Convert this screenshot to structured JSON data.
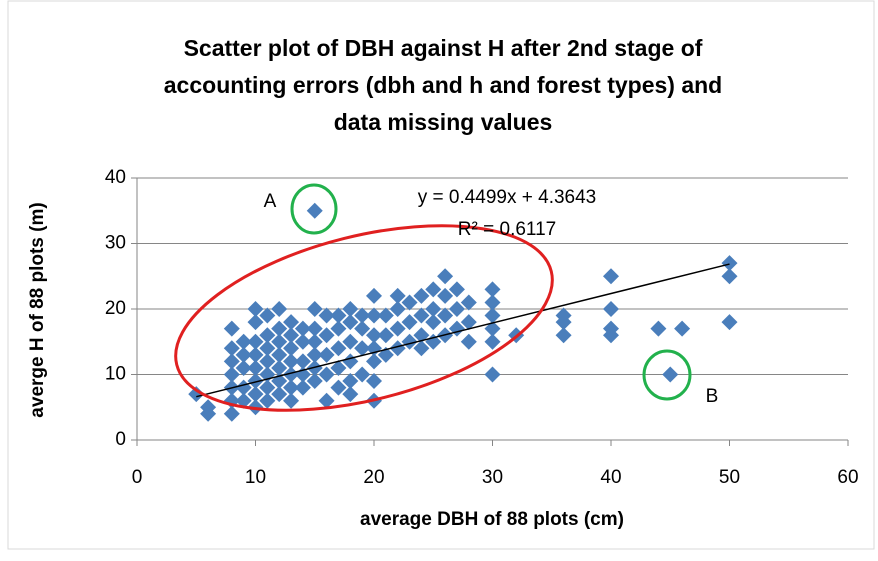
{
  "chart_data": {
    "type": "scatter",
    "title": [
      "Scatter plot of DBH against H after 2nd stage of",
      "accounting errors (dbh and h and forest types) and",
      "data missing values"
    ],
    "x_label": "average DBH of 88 plots (cm)",
    "y_label": "averge H of 88 plots (m)",
    "color": "#4a7ebb",
    "x": [
      5,
      6,
      6,
      8,
      8,
      8,
      8,
      8,
      8,
      8,
      9,
      9,
      9,
      9,
      9,
      10,
      10,
      10,
      10,
      10,
      10,
      10,
      10,
      11,
      11,
      11,
      11,
      11,
      11,
      11,
      12,
      12,
      12,
      12,
      12,
      12,
      12,
      13,
      13,
      13,
      13,
      13,
      13,
      13,
      14,
      14,
      14,
      14,
      14,
      15,
      15,
      15,
      15,
      15,
      15,
      15,
      16,
      16,
      16,
      16,
      16,
      17,
      17,
      17,
      17,
      17,
      18,
      18,
      18,
      18,
      18,
      18,
      19,
      19,
      19,
      19,
      20,
      20,
      20,
      20,
      20,
      20,
      20,
      21,
      21,
      21,
      22,
      22,
      22,
      22,
      23,
      23,
      23,
      24,
      24,
      24,
      24,
      25,
      25,
      25,
      25,
      26,
      26,
      26,
      26,
      27,
      27,
      27,
      28,
      28,
      28,
      30,
      30,
      30,
      30,
      30,
      30,
      32,
      36,
      36,
      36,
      40,
      40,
      40,
      40,
      44,
      45,
      46,
      50,
      50,
      50
    ],
    "values": [
      7,
      4,
      5,
      4,
      6,
      8,
      10,
      12,
      14,
      17,
      6,
      8,
      11,
      13,
      15,
      5,
      7,
      9,
      11,
      13,
      15,
      18,
      20,
      6,
      8,
      10,
      12,
      14,
      16,
      19,
      7,
      9,
      11,
      13,
      15,
      17,
      20,
      6,
      8,
      10,
      12,
      14,
      16,
      18,
      8,
      10,
      12,
      15,
      17,
      9,
      11,
      13,
      15,
      17,
      20,
      35,
      6,
      10,
      13,
      16,
      19,
      8,
      11,
      14,
      17,
      19,
      7,
      9,
      12,
      15,
      18,
      20,
      10,
      14,
      17,
      19,
      6,
      9,
      12,
      14,
      16,
      19,
      22,
      13,
      16,
      19,
      14,
      17,
      20,
      22,
      15,
      18,
      21,
      14,
      16,
      19,
      22,
      15,
      18,
      20,
      23,
      16,
      19,
      22,
      25,
      17,
      20,
      23,
      15,
      18,
      21,
      10,
      15,
      17,
      19,
      21,
      23,
      16,
      16,
      18,
      19,
      16,
      17,
      20,
      25,
      17,
      10,
      17,
      18,
      25,
      27
    ],
    "trendline": {
      "x": [
        5,
        50
      ],
      "values": [
        6.61,
        26.86
      ],
      "color": "#000000"
    },
    "equation": "y = 0.4499x + 4.3643",
    "r_squared": "R² = 0.6117",
    "annotations": [
      "A",
      "B"
    ],
    "xlim": [
      0,
      60
    ],
    "xticks": [
      0,
      10,
      20,
      30,
      40,
      50,
      60
    ],
    "ylim": [
      0,
      40
    ],
    "yticks": [
      0,
      10,
      20,
      30,
      40
    ],
    "grid": true
  }
}
